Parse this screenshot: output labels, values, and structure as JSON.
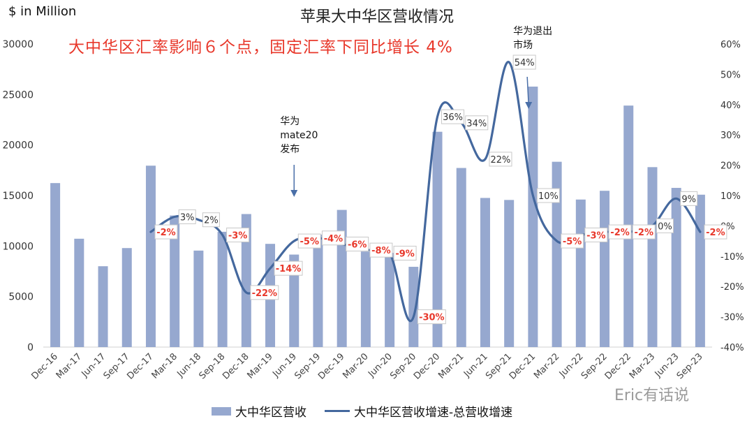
{
  "header": {
    "unit_label": "$ in Million",
    "title": "苹果大中华区营收情况",
    "subtitle": "大中华区汇率影响６个点，固定汇率下同比增长 4%"
  },
  "legend": {
    "bar_label": "大中华区营收",
    "line_label": "大中华区营收增速-总营收增速"
  },
  "watermark": "Eric有话说",
  "colors": {
    "bar": "#96a8cf",
    "line": "#44689e",
    "negative_label": "#e8382b",
    "positive_label": "#333333",
    "arrow": "#4a6fa8"
  },
  "chart_data": {
    "type": "bar",
    "categories": [
      "Dec-16",
      "Mar-17",
      "Jun-17",
      "Sep-17",
      "Dec-17",
      "Mar-18",
      "Jun-18",
      "Sep-18",
      "Dec-18",
      "Mar-19",
      "Jun-19",
      "Sep-19",
      "Dec-19",
      "Mar-20",
      "Jun-20",
      "Sep-20",
      "Dec-20",
      "Mar-21",
      "Jun-21",
      "Sep-21",
      "Dec-21",
      "Mar-22",
      "Jun-22",
      "Sep-22",
      "Dec-22",
      "Mar-23",
      "Jun-23",
      "Sep-23"
    ],
    "series": [
      {
        "name": "大中华区营收",
        "type": "bar",
        "axis": "left",
        "values": [
          16233,
          10726,
          8004,
          9801,
          17956,
          13024,
          9551,
          11411,
          13169,
          10218,
          9157,
          11134,
          13578,
          9455,
          9329,
          7946,
          21313,
          17728,
          14762,
          14563,
          25783,
          18343,
          14604,
          15470,
          23905,
          17812,
          15758,
          15084
        ]
      },
      {
        "name": "大中华区营收增速-总营收增速",
        "type": "line",
        "axis": "right",
        "values": [
          null,
          null,
          null,
          null,
          -2,
          3,
          2,
          -3,
          -22,
          -14,
          -5,
          -4,
          -6,
          -8,
          -9,
          -30,
          36,
          34,
          22,
          54,
          10,
          -5,
          -3,
          -2,
          -2,
          0,
          9,
          -2
        ],
        "labels": [
          "",
          "",
          "",
          "",
          "-2%",
          "3%",
          "2%",
          "-3%",
          "-22%",
          "-14%",
          "-5%",
          "-4%",
          "-6%",
          "-8%",
          "-9%",
          "-30%",
          "36%",
          "34%",
          "22%",
          "54%",
          "10%",
          "-5%",
          "-3%",
          "-2%",
          "-2%",
          "0%",
          "9%",
          "-2%"
        ]
      }
    ],
    "y_left": {
      "min": 0,
      "max": 30000,
      "ticks": [
        0,
        5000,
        10000,
        15000,
        20000,
        25000,
        30000
      ]
    },
    "y_right": {
      "min": -40,
      "max": 60,
      "ticks": [
        -40,
        -30,
        -20,
        -10,
        0,
        10,
        20,
        30,
        40,
        50,
        60
      ],
      "tick_labels": [
        "-40%",
        "-30%",
        "-20%",
        "-10%",
        "0%",
        "10%",
        "20%",
        "30%",
        "40%",
        "50%",
        "60%"
      ]
    },
    "grid": false,
    "legend_position": "bottom",
    "annotations": [
      {
        "lines": [
          "华为",
          "mate20",
          "发布"
        ],
        "category_index": 10
      },
      {
        "lines": [
          "华为退出",
          "市场"
        ],
        "category_index": 19
      }
    ]
  }
}
